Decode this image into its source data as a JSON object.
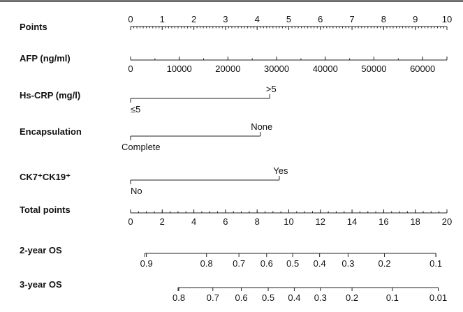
{
  "chart_data": {
    "type": "nomogram",
    "rows": [
      {
        "label": "Points",
        "kind": "scale",
        "domain": [
          0,
          10
        ],
        "ticks": [
          "0",
          "1",
          "2",
          "3",
          "4",
          "5",
          "6",
          "7",
          "8",
          "9",
          "10"
        ],
        "tick_values": [
          0,
          1,
          2,
          3,
          4,
          5,
          6,
          7,
          8,
          9,
          10
        ],
        "minor_step": 0.1,
        "minor_scale": "Points",
        "labels_side": "above"
      },
      {
        "label": "AFP (ng/ml)",
        "kind": "scale",
        "domain": [
          0,
          65000
        ],
        "points_range": [
          0,
          10
        ],
        "ticks": [
          "0",
          "10000",
          "20000",
          "30000",
          "40000",
          "50000",
          "60000"
        ],
        "tick_values": [
          0,
          10000,
          20000,
          30000,
          40000,
          50000,
          60000
        ],
        "minor_step": 5000,
        "labels_side": "below"
      },
      {
        "label": "Hs-CRP (mg/l)",
        "kind": "categorical",
        "levels": [
          {
            "label": "≤5",
            "points": 0,
            "side": "below"
          },
          {
            "label": ">5",
            "points": 4.4,
            "side": "above"
          }
        ]
      },
      {
        "label": "Encapsulation",
        "kind": "categorical",
        "levels": [
          {
            "label": "Complete",
            "points": 0,
            "side": "below"
          },
          {
            "label": "None",
            "points": 4.1,
            "side": "above"
          }
        ]
      },
      {
        "label": "CK7⁺CK19⁺",
        "kind": "categorical",
        "levels": [
          {
            "label": "No",
            "points": 0,
            "side": "below"
          },
          {
            "label": "Yes",
            "points": 4.7,
            "side": "above"
          }
        ]
      },
      {
        "label": "Total points",
        "kind": "scale",
        "domain": [
          0,
          20
        ],
        "ticks": [
          "0",
          "2",
          "4",
          "6",
          "8",
          "10",
          "12",
          "14",
          "16",
          "18",
          "20"
        ],
        "tick_values": [
          0,
          2,
          4,
          6,
          8,
          10,
          12,
          14,
          16,
          18,
          20
        ],
        "minor_step": 0.5,
        "labels_side": "below"
      },
      {
        "label": "2-year OS",
        "kind": "probability",
        "ticks": [
          "0.9",
          "0.8",
          "0.7",
          "0.6",
          "0.5",
          "0.4",
          "0.3",
          "0.2",
          "0.1"
        ],
        "tick_total_points": [
          1.0,
          4.8,
          6.85,
          8.6,
          10.25,
          11.95,
          13.75,
          16.05,
          19.3
        ],
        "line_total_points": [
          0.9,
          19.3
        ],
        "labels_side": "below"
      },
      {
        "label": "3-year OS",
        "kind": "probability",
        "ticks": [
          "0.8",
          "0.7",
          "0.6",
          "0.5",
          "0.4",
          "0.3",
          "0.2",
          "0.1",
          "0.01"
        ],
        "tick_total_points": [
          3.05,
          5.2,
          7.0,
          8.7,
          10.35,
          12.0,
          14.0,
          16.55,
          19.45
        ],
        "line_total_points": [
          3.0,
          19.45
        ],
        "labels_side": "below"
      }
    ]
  }
}
